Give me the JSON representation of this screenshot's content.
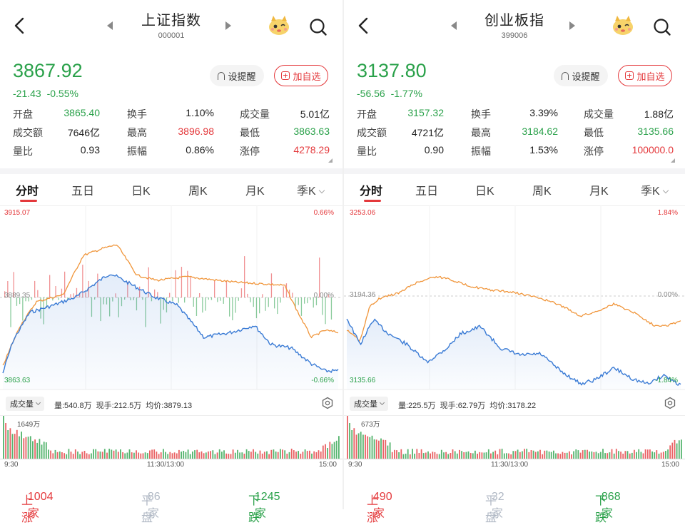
{
  "colors": {
    "up": "#e4393c",
    "down": "#2aa14a",
    "flat": "#b0b8c4",
    "price_line": "#3a7bd5",
    "avg_line": "#f0953a"
  },
  "icons": {
    "back": "chevron-left-icon",
    "prev": "triangle-left-icon",
    "next": "triangle-right-icon",
    "mascot": "mascot-icon",
    "search": "search-icon",
    "bell": "bell-icon",
    "add": "plus-box-icon",
    "settings": "settings-icon"
  },
  "panels": [
    {
      "title": "上证指数",
      "code": "000001",
      "price": "3867.92",
      "change": "-21.43",
      "change_pct": "-0.55%",
      "alert_label": "设提醒",
      "add_label": "加自选",
      "stats": [
        [
          {
            "label": "开盘",
            "value": "3865.40",
            "color": "down"
          },
          {
            "label": "换手",
            "value": "1.10%",
            "color": ""
          },
          {
            "label": "成交量",
            "value": "5.01亿",
            "color": ""
          }
        ],
        [
          {
            "label": "成交额",
            "value": "7646亿",
            "color": ""
          },
          {
            "label": "最高",
            "value": "3896.98",
            "color": "up"
          },
          {
            "label": "最低",
            "value": "3863.63",
            "color": "down"
          }
        ],
        [
          {
            "label": "量比",
            "value": "0.93",
            "color": ""
          },
          {
            "label": "振幅",
            "value": "0.86%",
            "color": ""
          },
          {
            "label": "涨停",
            "value": "4278.29",
            "color": "up"
          }
        ]
      ],
      "tabs": [
        "分时",
        "五日",
        "日K",
        "周K",
        "月K",
        "季K"
      ],
      "active_tab": 0,
      "chart": {
        "y_top": "3915.07",
        "y_mid": "3889.35",
        "y_bot": "3863.63",
        "pct_top": "0.66%",
        "pct_mid": "0.00%",
        "pct_bot": "-0.66%"
      },
      "vol_selector": "成交量",
      "vol_info": "量:540.8万 现手:212.5万 均价:3879.13",
      "vol_max": "1649万",
      "time_start": "9:30",
      "time_mid": "11:30/13:00",
      "time_end": "15:00",
      "up_label": "上涨",
      "up_count": "1004家",
      "flat_label": "平盘",
      "flat_count": "86家",
      "down_label": "下跌",
      "down_count": "1245家"
    },
    {
      "title": "创业板指",
      "code": "399006",
      "price": "3137.80",
      "change": "-56.56",
      "change_pct": "-1.77%",
      "alert_label": "设提醒",
      "add_label": "加自选",
      "stats": [
        [
          {
            "label": "开盘",
            "value": "3157.32",
            "color": "down"
          },
          {
            "label": "换手",
            "value": "3.39%",
            "color": ""
          },
          {
            "label": "成交量",
            "value": "1.88亿",
            "color": ""
          }
        ],
        [
          {
            "label": "成交额",
            "value": "4721亿",
            "color": ""
          },
          {
            "label": "最高",
            "value": "3184.62",
            "color": "down"
          },
          {
            "label": "最低",
            "value": "3135.66",
            "color": "down"
          }
        ],
        [
          {
            "label": "量比",
            "value": "0.90",
            "color": ""
          },
          {
            "label": "振幅",
            "value": "1.53%",
            "color": ""
          },
          {
            "label": "涨停",
            "value": "100000.0",
            "color": "up"
          }
        ]
      ],
      "tabs": [
        "分时",
        "五日",
        "日K",
        "周K",
        "月K",
        "季K"
      ],
      "active_tab": 0,
      "chart": {
        "y_top": "3253.06",
        "y_mid": "3194.36",
        "y_bot": "3135.66",
        "pct_top": "1.84%",
        "pct_mid": "0.00%",
        "pct_bot": "-1.84%"
      },
      "vol_selector": "成交量",
      "vol_info": "量:225.5万 现手:62.79万 均价:3178.22",
      "vol_max": "673万",
      "time_start": "9:30",
      "time_mid": "11:30/13:00",
      "time_end": "15:00",
      "up_label": "上涨",
      "up_count": "490家",
      "flat_label": "平盘",
      "flat_count": "32家",
      "down_label": "下跌",
      "down_count": "868家"
    }
  ]
}
